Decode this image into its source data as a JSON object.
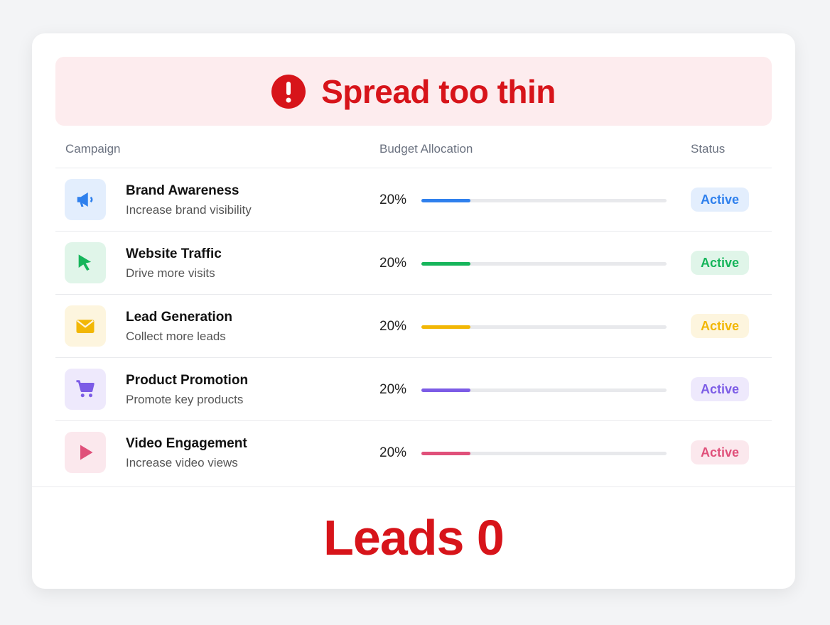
{
  "banner": {
    "title": "Spread too thin"
  },
  "table": {
    "headers": [
      "Campaign",
      "Budget Allocation",
      "Status"
    ],
    "rows": [
      {
        "name": "Brand Awareness",
        "description": "Increase brand visibility",
        "budget": {
          "value": 20,
          "label": "20%"
        },
        "status": "Active",
        "color": "#2f80ed"
      },
      {
        "name": "Website Traffic",
        "description": "Drive more visits",
        "budget": {
          "value": 20,
          "label": "20%"
        },
        "status": "Active",
        "color": "#16b55b"
      },
      {
        "name": "Lead Generation",
        "description": "Collect more leads",
        "budget": {
          "value": 20,
          "label": "20%"
        },
        "status": "Active",
        "color": "#f2b705"
      },
      {
        "name": "Product Promotion",
        "description": "Promote key products",
        "budget": {
          "value": 20,
          "label": "20%"
        },
        "status": "Active",
        "color": "#7c5ce6"
      },
      {
        "name": "Video Engagement",
        "description": "Increase video views",
        "budget": {
          "value": 20,
          "label": "20%"
        },
        "status": "Active",
        "color": "#e0507a"
      }
    ]
  },
  "footer": {
    "text": "Leads 0"
  }
}
